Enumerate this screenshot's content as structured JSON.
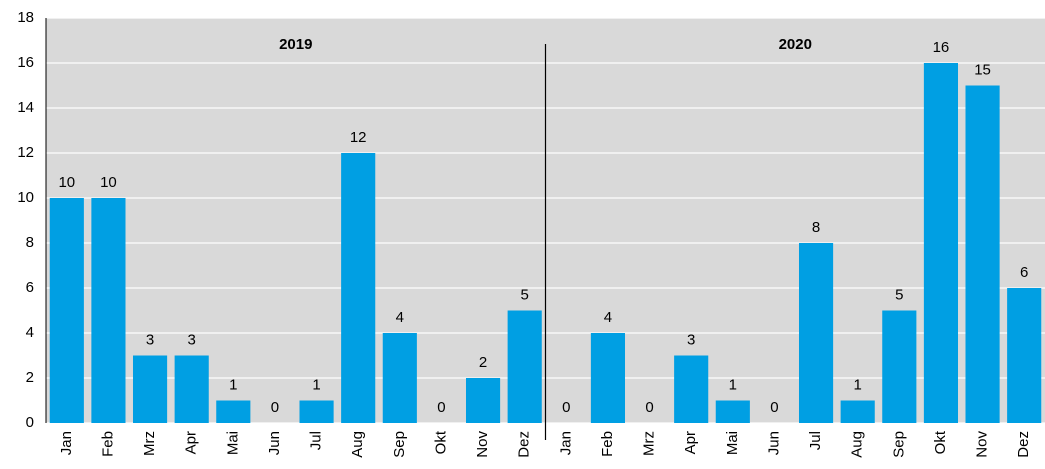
{
  "chart_data": {
    "type": "bar",
    "categories": [
      "Jan",
      "Feb",
      "Mrz",
      "Apr",
      "Mai",
      "Jun",
      "Jul",
      "Aug",
      "Sep",
      "Okt",
      "Nov",
      "Dez",
      "Jan",
      "Feb",
      "Mrz",
      "Apr",
      "Mai",
      "Jun",
      "Jul",
      "Aug",
      "Sep",
      "Okt",
      "Nov",
      "Dez"
    ],
    "values": [
      10,
      10,
      3,
      3,
      1,
      0,
      1,
      12,
      4,
      0,
      2,
      5,
      0,
      4,
      0,
      3,
      1,
      0,
      8,
      1,
      5,
      16,
      15,
      6
    ],
    "group_labels": [
      "2019",
      "2020"
    ],
    "color": "#009fe3",
    "ylim": [
      0,
      18
    ],
    "yticks": [
      0,
      2,
      4,
      6,
      8,
      10,
      12,
      14,
      16,
      18
    ],
    "grid": true
  }
}
